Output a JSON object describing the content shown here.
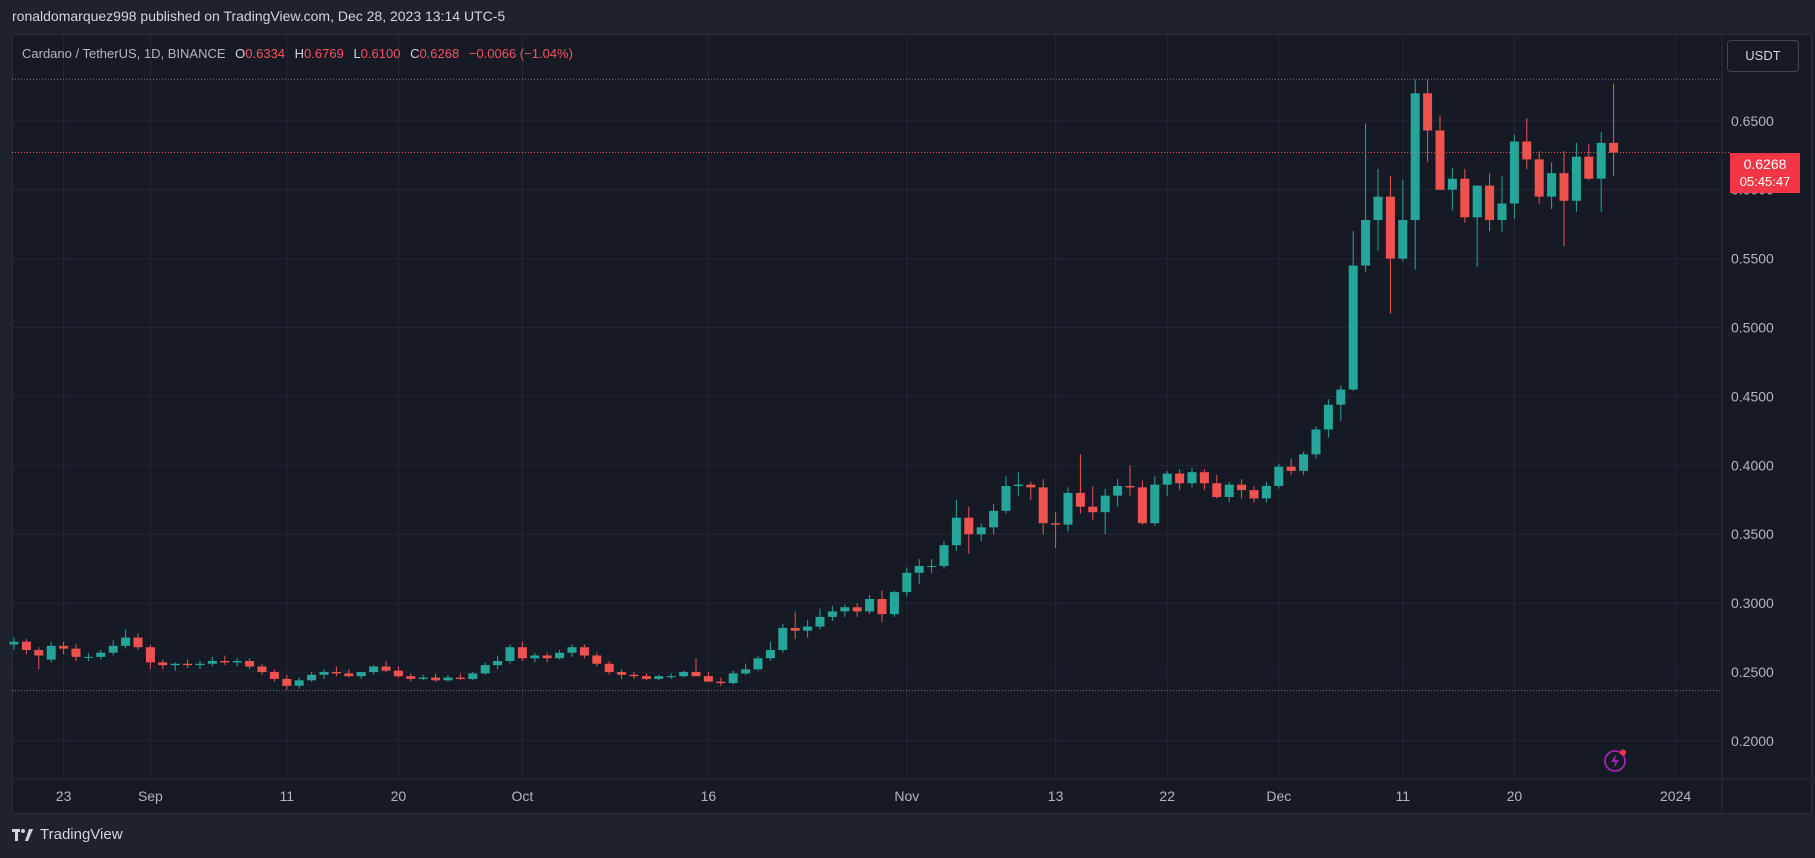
{
  "header": {
    "publish_text": "ronaldomarquez998 published on TradingView.com, Dec 28, 2023 13:14 UTC-5"
  },
  "legend": {
    "symbol": "Cardano / TetherUS, 1D, BINANCE",
    "o_key": "O",
    "o_val": "0.6334",
    "h_key": "H",
    "h_val": "0.6769",
    "l_key": "L",
    "l_val": "0.6100",
    "c_key": "C",
    "c_val": "0.6268",
    "change": "−0.0066 (−1.04%)"
  },
  "currency_button": "USDT",
  "last_price": {
    "price": "0.6268",
    "countdown": "05:45:47"
  },
  "footer": {
    "brand": "TradingView"
  },
  "colors": {
    "up": "#26a69a",
    "down": "#ef5350",
    "grid": "#232733",
    "axis_text": "#b2b5be",
    "price_tag": "#f23645"
  },
  "icons": {
    "brand_logo": "tradingview-logo-icon",
    "alert": "lightning-bolt-icon"
  },
  "chart_data": {
    "type": "candlestick",
    "title": "Cardano / TetherUS, 1D, BINANCE",
    "ylim": [
      0.18,
      0.69
    ],
    "y_ticks": [
      "0.2000",
      "0.2500",
      "0.3000",
      "0.3500",
      "0.4000",
      "0.4500",
      "0.5000",
      "0.5500",
      "0.6000",
      "0.6500"
    ],
    "x_tick_labels": [
      "23",
      "Sep",
      "11",
      "20",
      "Oct",
      "16",
      "Nov",
      "13",
      "22",
      "Dec",
      "11",
      "20",
      "2024"
    ],
    "x_tick_day_index": [
      4,
      11,
      22,
      31,
      41,
      56,
      72,
      84,
      93,
      102,
      112,
      121,
      134
    ],
    "first_date": "2023-08-19",
    "grid": true,
    "reference_lines": [
      0.6802,
      0.2365
    ],
    "candles": [
      [
        0.27,
        0.275,
        0.266,
        0.272
      ],
      [
        0.272,
        0.274,
        0.263,
        0.266
      ],
      [
        0.266,
        0.268,
        0.252,
        0.262
      ],
      [
        0.259,
        0.272,
        0.257,
        0.269
      ],
      [
        0.269,
        0.272,
        0.263,
        0.267
      ],
      [
        0.267,
        0.27,
        0.258,
        0.261
      ],
      [
        0.261,
        0.264,
        0.258,
        0.261
      ],
      [
        0.261,
        0.266,
        0.259,
        0.264
      ],
      [
        0.264,
        0.273,
        0.262,
        0.269
      ],
      [
        0.269,
        0.281,
        0.267,
        0.275
      ],
      [
        0.275,
        0.278,
        0.266,
        0.268
      ],
      [
        0.268,
        0.27,
        0.252,
        0.257
      ],
      [
        0.257,
        0.259,
        0.252,
        0.255
      ],
      [
        0.255,
        0.257,
        0.251,
        0.256
      ],
      [
        0.256,
        0.259,
        0.253,
        0.255
      ],
      [
        0.255,
        0.258,
        0.252,
        0.256
      ],
      [
        0.256,
        0.261,
        0.254,
        0.258
      ],
      [
        0.258,
        0.262,
        0.255,
        0.257
      ],
      [
        0.257,
        0.26,
        0.254,
        0.258
      ],
      [
        0.258,
        0.26,
        0.252,
        0.254
      ],
      [
        0.254,
        0.256,
        0.248,
        0.25
      ],
      [
        0.25,
        0.252,
        0.243,
        0.245
      ],
      [
        0.245,
        0.248,
        0.237,
        0.24
      ],
      [
        0.24,
        0.246,
        0.238,
        0.244
      ],
      [
        0.244,
        0.25,
        0.243,
        0.248
      ],
      [
        0.248,
        0.252,
        0.245,
        0.25
      ],
      [
        0.25,
        0.254,
        0.247,
        0.249
      ],
      [
        0.249,
        0.252,
        0.246,
        0.247
      ],
      [
        0.247,
        0.25,
        0.245,
        0.25
      ],
      [
        0.25,
        0.255,
        0.248,
        0.254
      ],
      [
        0.254,
        0.258,
        0.25,
        0.251
      ],
      [
        0.251,
        0.254,
        0.246,
        0.247
      ],
      [
        0.247,
        0.249,
        0.243,
        0.245
      ],
      [
        0.245,
        0.248,
        0.244,
        0.246
      ],
      [
        0.246,
        0.249,
        0.243,
        0.244
      ],
      [
        0.244,
        0.248,
        0.243,
        0.246
      ],
      [
        0.246,
        0.249,
        0.244,
        0.245
      ],
      [
        0.245,
        0.25,
        0.244,
        0.249
      ],
      [
        0.249,
        0.257,
        0.248,
        0.255
      ],
      [
        0.255,
        0.262,
        0.252,
        0.258
      ],
      [
        0.258,
        0.27,
        0.256,
        0.268
      ],
      [
        0.268,
        0.272,
        0.258,
        0.26
      ],
      [
        0.26,
        0.264,
        0.257,
        0.262
      ],
      [
        0.262,
        0.264,
        0.257,
        0.26
      ],
      [
        0.26,
        0.266,
        0.259,
        0.264
      ],
      [
        0.264,
        0.27,
        0.261,
        0.268
      ],
      [
        0.268,
        0.27,
        0.26,
        0.262
      ],
      [
        0.262,
        0.264,
        0.254,
        0.256
      ],
      [
        0.256,
        0.258,
        0.248,
        0.25
      ],
      [
        0.25,
        0.252,
        0.245,
        0.248
      ],
      [
        0.248,
        0.25,
        0.245,
        0.247
      ],
      [
        0.247,
        0.249,
        0.244,
        0.245
      ],
      [
        0.245,
        0.248,
        0.244,
        0.247
      ],
      [
        0.247,
        0.249,
        0.245,
        0.247
      ],
      [
        0.247,
        0.251,
        0.246,
        0.25
      ],
      [
        0.25,
        0.26,
        0.247,
        0.247
      ],
      [
        0.247,
        0.25,
        0.243,
        0.243
      ],
      [
        0.243,
        0.246,
        0.24,
        0.242
      ],
      [
        0.242,
        0.251,
        0.241,
        0.249
      ],
      [
        0.249,
        0.256,
        0.248,
        0.252
      ],
      [
        0.252,
        0.262,
        0.251,
        0.26
      ],
      [
        0.26,
        0.272,
        0.258,
        0.266
      ],
      [
        0.266,
        0.285,
        0.264,
        0.282
      ],
      [
        0.282,
        0.294,
        0.274,
        0.28
      ],
      [
        0.28,
        0.288,
        0.275,
        0.283
      ],
      [
        0.283,
        0.296,
        0.281,
        0.29
      ],
      [
        0.29,
        0.298,
        0.287,
        0.294
      ],
      [
        0.294,
        0.299,
        0.29,
        0.297
      ],
      [
        0.297,
        0.3,
        0.29,
        0.294
      ],
      [
        0.294,
        0.306,
        0.292,
        0.303
      ],
      [
        0.303,
        0.309,
        0.286,
        0.292
      ],
      [
        0.292,
        0.309,
        0.29,
        0.308
      ],
      [
        0.308,
        0.326,
        0.305,
        0.322
      ],
      [
        0.322,
        0.332,
        0.314,
        0.327
      ],
      [
        0.327,
        0.332,
        0.322,
        0.327
      ],
      [
        0.327,
        0.345,
        0.325,
        0.342
      ],
      [
        0.342,
        0.375,
        0.338,
        0.362
      ],
      [
        0.362,
        0.37,
        0.336,
        0.35
      ],
      [
        0.35,
        0.358,
        0.345,
        0.355
      ],
      [
        0.355,
        0.372,
        0.35,
        0.367
      ],
      [
        0.367,
        0.392,
        0.365,
        0.385
      ],
      [
        0.385,
        0.395,
        0.378,
        0.386
      ],
      [
        0.386,
        0.388,
        0.375,
        0.384
      ],
      [
        0.384,
        0.39,
        0.35,
        0.358
      ],
      [
        0.358,
        0.366,
        0.34,
        0.357
      ],
      [
        0.357,
        0.384,
        0.352,
        0.38
      ],
      [
        0.38,
        0.408,
        0.365,
        0.37
      ],
      [
        0.37,
        0.385,
        0.36,
        0.366
      ],
      [
        0.366,
        0.383,
        0.35,
        0.378
      ],
      [
        0.378,
        0.39,
        0.37,
        0.385
      ],
      [
        0.385,
        0.4,
        0.378,
        0.384
      ],
      [
        0.384,
        0.389,
        0.357,
        0.358
      ],
      [
        0.358,
        0.392,
        0.356,
        0.386
      ],
      [
        0.386,
        0.396,
        0.378,
        0.394
      ],
      [
        0.394,
        0.397,
        0.382,
        0.387
      ],
      [
        0.387,
        0.398,
        0.384,
        0.395
      ],
      [
        0.395,
        0.397,
        0.382,
        0.387
      ],
      [
        0.387,
        0.393,
        0.376,
        0.377
      ],
      [
        0.377,
        0.388,
        0.373,
        0.386
      ],
      [
        0.386,
        0.39,
        0.376,
        0.382
      ],
      [
        0.382,
        0.385,
        0.373,
        0.376
      ],
      [
        0.376,
        0.388,
        0.373,
        0.385
      ],
      [
        0.385,
        0.401,
        0.383,
        0.399
      ],
      [
        0.399,
        0.405,
        0.393,
        0.396
      ],
      [
        0.396,
        0.41,
        0.393,
        0.408
      ],
      [
        0.408,
        0.428,
        0.405,
        0.426
      ],
      [
        0.426,
        0.448,
        0.42,
        0.444
      ],
      [
        0.444,
        0.458,
        0.432,
        0.455
      ],
      [
        0.455,
        0.57,
        0.454,
        0.545
      ],
      [
        0.545,
        0.648,
        0.54,
        0.578
      ],
      [
        0.578,
        0.615,
        0.556,
        0.595
      ],
      [
        0.595,
        0.61,
        0.51,
        0.55
      ],
      [
        0.55,
        0.607,
        0.548,
        0.578
      ],
      [
        0.578,
        0.68,
        0.542,
        0.67
      ],
      [
        0.67,
        0.68,
        0.62,
        0.643
      ],
      [
        0.643,
        0.654,
        0.6,
        0.6
      ],
      [
        0.6,
        0.616,
        0.585,
        0.608
      ],
      [
        0.608,
        0.615,
        0.576,
        0.58
      ],
      [
        0.58,
        0.602,
        0.544,
        0.603
      ],
      [
        0.603,
        0.612,
        0.57,
        0.578
      ],
      [
        0.578,
        0.61,
        0.569,
        0.59
      ],
      [
        0.59,
        0.64,
        0.579,
        0.635
      ],
      [
        0.635,
        0.652,
        0.615,
        0.622
      ],
      [
        0.622,
        0.628,
        0.59,
        0.595
      ],
      [
        0.595,
        0.62,
        0.586,
        0.612
      ],
      [
        0.612,
        0.628,
        0.559,
        0.592
      ],
      [
        0.592,
        0.634,
        0.584,
        0.624
      ],
      [
        0.624,
        0.633,
        0.607,
        0.608
      ],
      [
        0.608,
        0.642,
        0.584,
        0.634
      ],
      [
        0.634,
        0.677,
        0.61,
        0.627
      ]
    ]
  }
}
